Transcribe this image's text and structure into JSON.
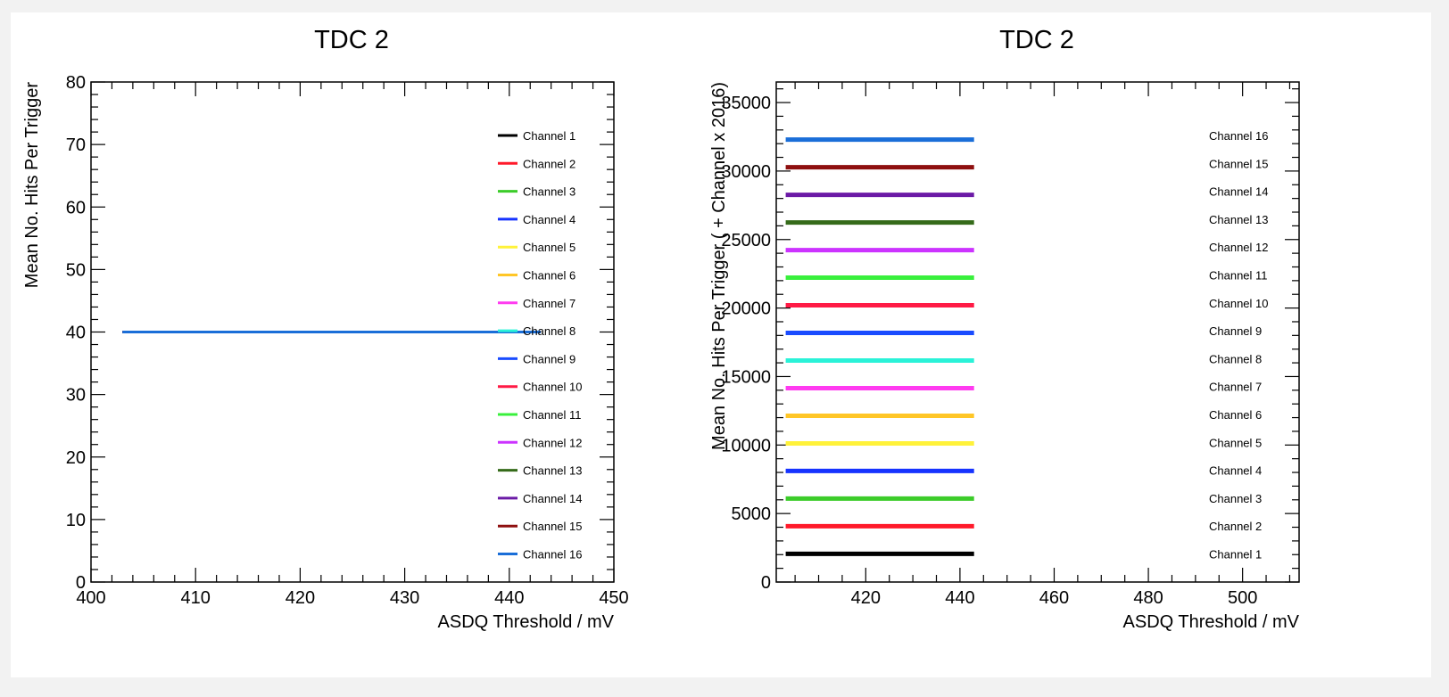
{
  "colors": {
    "channel_1": "#000000",
    "channel_2": "#ff1a2a",
    "channel_3": "#3ccc2a",
    "channel_4": "#1633ff",
    "channel_5": "#fff23a",
    "channel_6": "#ffc627",
    "channel_7": "#ff3bf0",
    "channel_8": "#2af2d8",
    "channel_9": "#1a4cff",
    "channel_10": "#ff1a45",
    "channel_11": "#39f03c",
    "channel_12": "#cc33ff",
    "channel_13": "#356b1a",
    "channel_14": "#6b1aa6",
    "channel_15": "#8e0f0f",
    "channel_16": "#1a6ed8"
  },
  "chart_data": [
    {
      "type": "line",
      "title": "TDC 2",
      "xlabel": "ASDQ Threshold / mV",
      "ylabel": "Mean No. Hits Per Trigger",
      "xlim": [
        400,
        450
      ],
      "ylim": [
        0,
        80
      ],
      "xticks": [
        400,
        410,
        420,
        430,
        440,
        450
      ],
      "xtick_labels": [
        "400",
        "410",
        "420",
        "430",
        "440",
        "450"
      ],
      "yticks": [
        0,
        10,
        20,
        30,
        40,
        50,
        60,
        70,
        80
      ],
      "ytick_labels": [
        "0",
        "10",
        "20",
        "30",
        "40",
        "50",
        "60",
        "70",
        "80"
      ],
      "legend_position": "right",
      "series": [
        {
          "name": "Channel 1",
          "color": "#000000",
          "x": [
            403,
            443
          ],
          "y": [
            40,
            40
          ]
        },
        {
          "name": "Channel 2",
          "color": "#ff1a2a",
          "x": [
            403,
            443
          ],
          "y": [
            40,
            40
          ]
        },
        {
          "name": "Channel 3",
          "color": "#3ccc2a",
          "x": [
            403,
            443
          ],
          "y": [
            40,
            40
          ]
        },
        {
          "name": "Channel 4",
          "color": "#1633ff",
          "x": [
            403,
            443
          ],
          "y": [
            40,
            40
          ]
        },
        {
          "name": "Channel 5",
          "color": "#fff23a",
          "x": [
            403,
            443
          ],
          "y": [
            40,
            40
          ]
        },
        {
          "name": "Channel 6",
          "color": "#ffc627",
          "x": [
            403,
            443
          ],
          "y": [
            40,
            40
          ]
        },
        {
          "name": "Channel 7",
          "color": "#ff3bf0",
          "x": [
            403,
            443
          ],
          "y": [
            40,
            40
          ]
        },
        {
          "name": "Channel 8",
          "color": "#2af2d8",
          "x": [
            403,
            443
          ],
          "y": [
            40,
            40
          ]
        },
        {
          "name": "Channel 9",
          "color": "#1a4cff",
          "x": [
            403,
            443
          ],
          "y": [
            40,
            40
          ]
        },
        {
          "name": "Channel 10",
          "color": "#ff1a45",
          "x": [
            403,
            443
          ],
          "y": [
            40,
            40
          ]
        },
        {
          "name": "Channel 11",
          "color": "#39f03c",
          "x": [
            403,
            443
          ],
          "y": [
            40,
            40
          ]
        },
        {
          "name": "Channel 12",
          "color": "#cc33ff",
          "x": [
            403,
            443
          ],
          "y": [
            40,
            40
          ]
        },
        {
          "name": "Channel 13",
          "color": "#356b1a",
          "x": [
            403,
            443
          ],
          "y": [
            40,
            40
          ]
        },
        {
          "name": "Channel 14",
          "color": "#6b1aa6",
          "x": [
            403,
            443
          ],
          "y": [
            40,
            40
          ]
        },
        {
          "name": "Channel 15",
          "color": "#8e0f0f",
          "x": [
            403,
            443
          ],
          "y": [
            40,
            40
          ]
        },
        {
          "name": "Channel 16",
          "color": "#1a6ed8",
          "x": [
            403,
            443
          ],
          "y": [
            40,
            40
          ]
        }
      ]
    },
    {
      "type": "line",
      "title": "TDC 2",
      "xlabel": "ASDQ Threshold / mV",
      "ylabel": "Mean No. Hits Per Trigger ( + Channel x 2016)",
      "xlim": [
        401,
        512
      ],
      "ylim": [
        0,
        36500
      ],
      "xticks": [
        420,
        440,
        460,
        480,
        500
      ],
      "xtick_labels": [
        "420",
        "440",
        "460",
        "480",
        "500"
      ],
      "yticks": [
        0,
        5000,
        10000,
        15000,
        20000,
        25000,
        30000,
        35000
      ],
      "ytick_labels": [
        "0",
        "5000",
        "10000",
        "15000",
        "20000",
        "25000",
        "30000",
        "35000"
      ],
      "legend_position": "right",
      "series": [
        {
          "name": "Channel 1",
          "color": "#000000",
          "x": [
            403,
            443
          ],
          "y": [
            2056,
            2056
          ]
        },
        {
          "name": "Channel 2",
          "color": "#ff1a2a",
          "x": [
            403,
            443
          ],
          "y": [
            4072,
            4072
          ]
        },
        {
          "name": "Channel 3",
          "color": "#3ccc2a",
          "x": [
            403,
            443
          ],
          "y": [
            6088,
            6088
          ]
        },
        {
          "name": "Channel 4",
          "color": "#1633ff",
          "x": [
            403,
            443
          ],
          "y": [
            8104,
            8104
          ]
        },
        {
          "name": "Channel 5",
          "color": "#fff23a",
          "x": [
            403,
            443
          ],
          "y": [
            10120,
            10120
          ]
        },
        {
          "name": "Channel 6",
          "color": "#ffc627",
          "x": [
            403,
            443
          ],
          "y": [
            12136,
            12136
          ]
        },
        {
          "name": "Channel 7",
          "color": "#ff3bf0",
          "x": [
            403,
            443
          ],
          "y": [
            14152,
            14152
          ]
        },
        {
          "name": "Channel 8",
          "color": "#2af2d8",
          "x": [
            403,
            443
          ],
          "y": [
            16168,
            16168
          ]
        },
        {
          "name": "Channel 9",
          "color": "#1a4cff",
          "x": [
            403,
            443
          ],
          "y": [
            18184,
            18184
          ]
        },
        {
          "name": "Channel 10",
          "color": "#ff1a45",
          "x": [
            403,
            443
          ],
          "y": [
            20200,
            20200
          ]
        },
        {
          "name": "Channel 11",
          "color": "#39f03c",
          "x": [
            403,
            443
          ],
          "y": [
            22216,
            22216
          ]
        },
        {
          "name": "Channel 12",
          "color": "#cc33ff",
          "x": [
            403,
            443
          ],
          "y": [
            24232,
            24232
          ]
        },
        {
          "name": "Channel 13",
          "color": "#356b1a",
          "x": [
            403,
            443
          ],
          "y": [
            26248,
            26248
          ]
        },
        {
          "name": "Channel 14",
          "color": "#6b1aa6",
          "x": [
            403,
            443
          ],
          "y": [
            28264,
            28264
          ]
        },
        {
          "name": "Channel 15",
          "color": "#8e0f0f",
          "x": [
            403,
            443
          ],
          "y": [
            30280,
            30280
          ]
        },
        {
          "name": "Channel 16",
          "color": "#1a6ed8",
          "x": [
            403,
            443
          ],
          "y": [
            32296,
            32296
          ]
        }
      ]
    }
  ]
}
